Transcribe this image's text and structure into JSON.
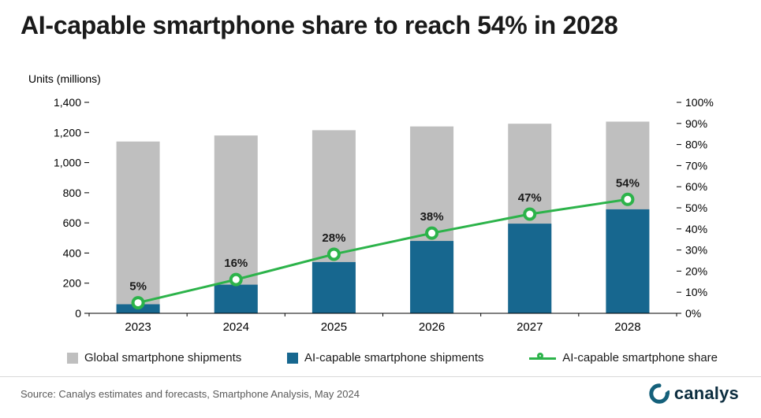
{
  "title": "AI-capable smartphone share to reach 54% in 2028",
  "axis_title": "Units (millions)",
  "source": "Source: Canalys estimates and forecasts, Smartphone Analysis, May 2024",
  "logo": {
    "text": "canalys"
  },
  "colors": {
    "gray_bar": "#bfbfbf",
    "blue_bar": "#17678f",
    "green_line": "#2cb34a",
    "label_text": "#1a1a1a"
  },
  "legend": [
    {
      "label": "Global smartphone shipments",
      "marker": "gray-square"
    },
    {
      "label": "AI-capable smartphone shipments",
      "marker": "blue-square"
    },
    {
      "label": "AI-capable smartphone share",
      "marker": "green-line-dot"
    }
  ],
  "chart_data": {
    "type": "bar",
    "subtype": "overlay-bars-with-line",
    "categories": [
      "2023",
      "2024",
      "2025",
      "2026",
      "2027",
      "2028"
    ],
    "series": [
      {
        "name": "Global smartphone shipments",
        "type": "bar",
        "axis": "left",
        "values": [
          1140,
          1180,
          1215,
          1240,
          1258,
          1272
        ]
      },
      {
        "name": "AI-capable smartphone shipments",
        "type": "bar",
        "axis": "left",
        "values": [
          60,
          190,
          340,
          480,
          595,
          690
        ]
      },
      {
        "name": "AI-capable smartphone share",
        "type": "line",
        "axis": "right",
        "values": [
          5,
          16,
          28,
          38,
          47,
          54
        ],
        "labels": [
          "5%",
          "16%",
          "28%",
          "38%",
          "47%",
          "54%"
        ]
      }
    ],
    "left_axis": {
      "min": 0,
      "max": 1400,
      "step": 200,
      "ticks": [
        "0",
        "200",
        "400",
        "600",
        "800",
        "1,000",
        "1,200",
        "1,400"
      ]
    },
    "right_axis": {
      "min": 0,
      "max": 100,
      "step": 10,
      "ticks": [
        "0%",
        "10%",
        "20%",
        "30%",
        "40%",
        "50%",
        "60%",
        "70%",
        "80%",
        "90%",
        "100%"
      ]
    },
    "grid": false,
    "legend_position": "bottom"
  }
}
